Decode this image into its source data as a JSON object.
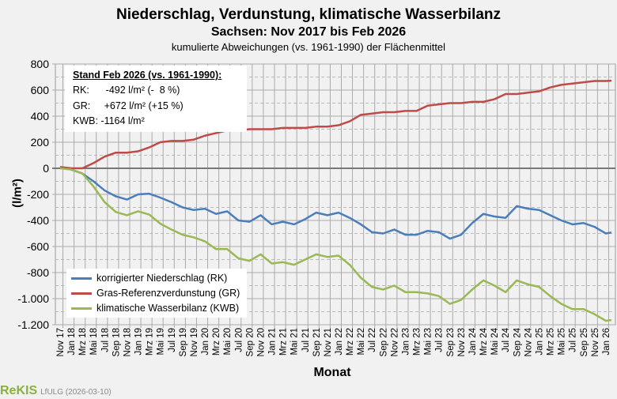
{
  "chart_data": {
    "type": "line",
    "title": "Niederschlag, Verdunstung, klimatische Wasserbilanz",
    "subtitle": "Sachsen: Nov 2017 bis Feb 2026",
    "subsubtitle": "kumulierte Abweichungen (vs. 1961-1990) der Flächenmittel",
    "xlabel": "Monat",
    "ylabel": "(l/m²)",
    "ylim": [
      -1200,
      800
    ],
    "yticks": [
      800,
      600,
      400,
      200,
      0,
      -200,
      -400,
      -600,
      -800,
      -1000,
      -1200
    ],
    "ytick_labels": [
      "800",
      "600",
      "400",
      "200",
      "0",
      "-200",
      "-400",
      "-600",
      "-800",
      "-1.000",
      "-1.200"
    ],
    "xtick_labels": [
      "Nov 17",
      "Jan 18",
      "Mrz 18",
      "Mai 18",
      "Jul 18",
      "Sep 18",
      "Nov 18",
      "Jan 19",
      "Mrz 19",
      "Mai 19",
      "Jul 19",
      "Sep 19",
      "Nov 19",
      "Jan 20",
      "Mrz 20",
      "Mai 20",
      "Jul 20",
      "Sep 20",
      "Nov 20",
      "Jan 21",
      "Mrz 21",
      "Mai 21",
      "Jul 21",
      "Sep 21",
      "Nov 21",
      "Jan 22",
      "Mrz 22",
      "Mai 22",
      "Jul 22",
      "Sep 22",
      "Nov 22",
      "Jan 23",
      "Mrz 23",
      "Mai 23",
      "Jul 23",
      "Sep 23",
      "Nov 23",
      "Jan 24",
      "Mrz 24",
      "Mai 24",
      "Jul 24",
      "Sep 24",
      "Nov 24",
      "Jan 25",
      "Mrz 25",
      "Mai 25",
      "Jul 25",
      "Sep 25",
      "Nov 25",
      "Jan 26"
    ],
    "x": [
      "Nov 17",
      "Jan 18",
      "Mrz 18",
      "Mai 18",
      "Jul 18",
      "Sep 18",
      "Nov 18",
      "Jan 19",
      "Mrz 19",
      "Mai 19",
      "Jul 19",
      "Sep 19",
      "Nov 19",
      "Jan 20",
      "Mrz 20",
      "Mai 20",
      "Jul 20",
      "Sep 20",
      "Nov 20",
      "Jan 21",
      "Mrz 21",
      "Mai 21",
      "Jul 21",
      "Sep 21",
      "Nov 21",
      "Jan 22",
      "Mrz 22",
      "Mai 22",
      "Jul 22",
      "Sep 22",
      "Nov 22",
      "Jan 23",
      "Mrz 23",
      "Mai 23",
      "Jul 23",
      "Sep 23",
      "Nov 23",
      "Jan 24",
      "Mrz 24",
      "Mai 24",
      "Jul 24",
      "Sep 24",
      "Nov 24",
      "Jan 25",
      "Mrz 25",
      "Mai 25",
      "Jul 25",
      "Sep 25",
      "Nov 25",
      "Jan 26",
      "Feb 26"
    ],
    "grid": true,
    "legend_position": "bottom-left",
    "series": [
      {
        "name": "korrigierter Niederschlag (RK)",
        "color": "#4a7ebb",
        "values": [
          10,
          -10,
          -40,
          -100,
          -170,
          -215,
          -240,
          -200,
          -195,
          -225,
          -260,
          -300,
          -320,
          -310,
          -350,
          -330,
          -400,
          -410,
          -360,
          -430,
          -410,
          -430,
          -390,
          -340,
          -360,
          -340,
          -380,
          -430,
          -490,
          -500,
          -470,
          -510,
          -510,
          -480,
          -490,
          -540,
          -510,
          -420,
          -350,
          -370,
          -380,
          -290,
          -310,
          -320,
          -360,
          -400,
          -430,
          -420,
          -450,
          -500,
          -492
        ]
      },
      {
        "name": "Gras-Referenzverdunstung (GR)",
        "color": "#be4b48",
        "values": [
          10,
          0,
          0,
          40,
          90,
          120,
          120,
          130,
          160,
          200,
          210,
          210,
          220,
          250,
          270,
          290,
          290,
          300,
          300,
          300,
          310,
          310,
          310,
          320,
          320,
          330,
          360,
          410,
          420,
          430,
          430,
          440,
          440,
          480,
          490,
          500,
          500,
          510,
          510,
          530,
          570,
          570,
          580,
          590,
          620,
          640,
          650,
          660,
          670,
          670,
          672
        ]
      },
      {
        "name": "klimatische Wasserbilanz (KWB)",
        "color": "#98b954",
        "values": [
          0,
          -10,
          -40,
          -140,
          -260,
          -335,
          -360,
          -330,
          -355,
          -425,
          -470,
          -510,
          -530,
          -560,
          -620,
          -620,
          -690,
          -710,
          -660,
          -730,
          -720,
          -740,
          -700,
          -660,
          -680,
          -670,
          -740,
          -840,
          -910,
          -930,
          -900,
          -950,
          -950,
          -960,
          -980,
          -1040,
          -1010,
          -930,
          -860,
          -900,
          -950,
          -860,
          -890,
          -910,
          -980,
          -1040,
          -1080,
          -1080,
          -1120,
          -1170,
          -1164
        ]
      }
    ],
    "annotation": {
      "heading": "Stand Feb 2026 (vs. 1961-1990):",
      "rk": "RK:      -492 l/m² (-  8 %)",
      "gr": "GR:     +672 l/m² (+15 %)",
      "kwb": "KWB: -1164 l/m²"
    }
  },
  "footer": {
    "logo": "ReKIS",
    "source": "LfULG (2026-03-10)"
  }
}
